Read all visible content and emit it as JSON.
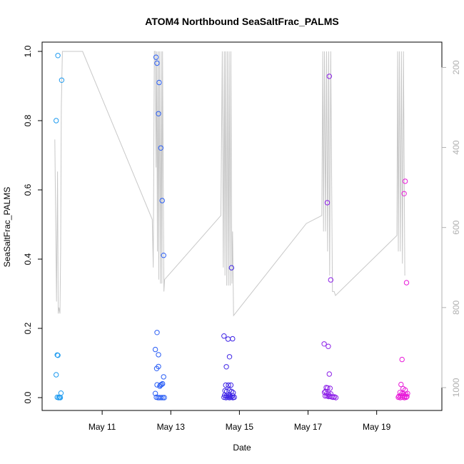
{
  "chart_data": {
    "type": "scatter",
    "title": "ATOM4 Northbound SeaSaltFrac_PALMS",
    "xlabel": "Date",
    "ylabel": "SeaSaltFrac_PALMS",
    "x_unit": "days since May 10 00:00",
    "xlim": [
      9.25,
      20.9
    ],
    "ylim": [
      0,
      1.0
    ],
    "x_ticks": [
      {
        "x": 11,
        "label": "May 11"
      },
      {
        "x": 13,
        "label": "May 13"
      },
      {
        "x": 15,
        "label": "May 15"
      },
      {
        "x": 17,
        "label": "May 17"
      },
      {
        "x": 19,
        "label": "May 19"
      }
    ],
    "y_ticks": [
      {
        "v": 0.0,
        "label": "0.0"
      },
      {
        "v": 0.2,
        "label": "0.2"
      },
      {
        "v": 0.4,
        "label": "0.4"
      },
      {
        "v": 0.6,
        "label": "0.6"
      },
      {
        "v": 0.8,
        "label": "0.8"
      },
      {
        "v": 1.0,
        "label": "1.0"
      }
    ],
    "secondary_axis": {
      "side": "right",
      "reversed": true,
      "ylim": [
        1025,
        160
      ],
      "ticks": [
        {
          "v": 200,
          "label": "200"
        },
        {
          "v": 400,
          "label": "400"
        },
        {
          "v": 600,
          "label": "600"
        },
        {
          "v": 800,
          "label": "800"
        },
        {
          "v": 1000,
          "label": "1000"
        }
      ],
      "color": "#b0b0b0"
    },
    "grid": false,
    "legend": "none",
    "series": [
      {
        "color": "#1e9bf0",
        "points": [
          [
            9.71,
            0.988
          ],
          [
            9.82,
            0.917
          ],
          [
            9.66,
            0.8
          ],
          [
            9.69,
            0.123
          ],
          [
            9.71,
            0.122
          ],
          [
            9.66,
            0.066
          ],
          [
            9.8,
            0.013
          ],
          [
            9.69,
            0.001
          ],
          [
            9.73,
            0.0
          ],
          [
            9.76,
            0.001
          ],
          [
            9.78,
            0.0
          ]
        ]
      },
      {
        "color": "#2a5ef5",
        "points": [
          [
            12.57,
            0.983
          ],
          [
            12.6,
            0.966
          ],
          [
            12.66,
            0.91
          ],
          [
            12.64,
            0.82
          ],
          [
            12.71,
            0.721
          ],
          [
            12.75,
            0.569
          ],
          [
            12.79,
            0.411
          ],
          [
            12.6,
            0.188
          ],
          [
            12.55,
            0.139
          ],
          [
            12.64,
            0.124
          ],
          [
            12.59,
            0.084
          ],
          [
            12.64,
            0.09
          ],
          [
            12.79,
            0.06
          ],
          [
            12.6,
            0.037
          ],
          [
            12.7,
            0.036
          ],
          [
            12.73,
            0.038
          ],
          [
            12.76,
            0.04
          ],
          [
            12.68,
            0.033
          ],
          [
            12.55,
            0.012
          ],
          [
            12.58,
            0.001
          ],
          [
            12.63,
            0.0
          ],
          [
            12.67,
            0.0
          ],
          [
            12.72,
            0.0
          ],
          [
            12.77,
            0.0
          ],
          [
            12.81,
            0.0
          ]
        ]
      },
      {
        "color": "#3f25e6",
        "points": [
          [
            14.77,
            0.375
          ],
          [
            14.55,
            0.178
          ],
          [
            14.67,
            0.169
          ],
          [
            14.8,
            0.17
          ],
          [
            14.71,
            0.118
          ],
          [
            14.62,
            0.089
          ],
          [
            14.6,
            0.036
          ],
          [
            14.68,
            0.036
          ],
          [
            14.75,
            0.036
          ],
          [
            14.58,
            0.02
          ],
          [
            14.63,
            0.018
          ],
          [
            14.7,
            0.021
          ],
          [
            14.77,
            0.018
          ],
          [
            14.82,
            0.014
          ],
          [
            14.57,
            0.007
          ],
          [
            14.62,
            0.005
          ],
          [
            14.67,
            0.006
          ],
          [
            14.72,
            0.004
          ],
          [
            14.8,
            0.006
          ],
          [
            14.55,
            0.001
          ],
          [
            14.61,
            0.0
          ],
          [
            14.66,
            0.001
          ],
          [
            14.71,
            0.0
          ],
          [
            14.76,
            0.001
          ],
          [
            14.81,
            0.0
          ],
          [
            14.85,
            0.001
          ]
        ]
      },
      {
        "color": "#8c1fe8",
        "points": [
          [
            17.62,
            0.928
          ],
          [
            17.56,
            0.563
          ],
          [
            17.66,
            0.34
          ],
          [
            17.47,
            0.155
          ],
          [
            17.59,
            0.148
          ],
          [
            17.62,
            0.068
          ],
          [
            17.53,
            0.029
          ],
          [
            17.57,
            0.028
          ],
          [
            17.64,
            0.027
          ],
          [
            17.48,
            0.015
          ],
          [
            17.51,
            0.018
          ],
          [
            17.55,
            0.012
          ],
          [
            17.6,
            0.01
          ],
          [
            17.66,
            0.011
          ],
          [
            17.5,
            0.005
          ],
          [
            17.55,
            0.005
          ],
          [
            17.6,
            0.003
          ],
          [
            17.64,
            0.004
          ],
          [
            17.69,
            0.002
          ],
          [
            17.73,
            0.001
          ],
          [
            17.77,
            0.002
          ],
          [
            17.81,
            0.0
          ]
        ]
      },
      {
        "color": "#e81ad9",
        "points": [
          [
            19.83,
            0.625
          ],
          [
            19.8,
            0.589
          ],
          [
            19.87,
            0.332
          ],
          [
            19.74,
            0.11
          ],
          [
            19.71,
            0.038
          ],
          [
            19.77,
            0.026
          ],
          [
            19.83,
            0.022
          ],
          [
            19.68,
            0.015
          ],
          [
            19.74,
            0.012
          ],
          [
            19.79,
            0.011
          ],
          [
            19.85,
            0.01
          ],
          [
            19.9,
            0.012
          ],
          [
            19.65,
            0.004
          ],
          [
            19.7,
            0.006
          ],
          [
            19.76,
            0.005
          ],
          [
            19.82,
            0.004
          ],
          [
            19.88,
            0.003
          ],
          [
            19.63,
            0.001
          ],
          [
            19.69,
            0.0
          ],
          [
            19.75,
            0.001
          ],
          [
            19.81,
            0.0
          ],
          [
            19.86,
            0.001
          ]
        ]
      }
    ],
    "altitude_trace": {
      "color": "#c8c8c8",
      "points": [
        [
          9.62,
          380
        ],
        [
          9.67,
          785
        ],
        [
          9.7,
          460
        ],
        [
          9.72,
          815
        ],
        [
          9.74,
          800
        ],
        [
          9.77,
          815
        ],
        [
          9.79,
          650
        ],
        [
          9.81,
          300
        ],
        [
          9.84,
          160
        ],
        [
          9.87,
          160
        ],
        [
          9.9,
          160
        ],
        [
          10.43,
          160
        ],
        [
          12.46,
          580
        ],
        [
          12.49,
          700
        ],
        [
          12.52,
          160
        ],
        [
          12.55,
          160
        ],
        [
          12.57,
          450
        ],
        [
          12.59,
          160
        ],
        [
          12.61,
          660
        ],
        [
          12.63,
          160
        ],
        [
          12.65,
          730
        ],
        [
          12.67,
          160
        ],
        [
          12.7,
          740
        ],
        [
          12.72,
          160
        ],
        [
          12.74,
          740
        ],
        [
          12.76,
          160
        ],
        [
          12.8,
          760
        ],
        [
          12.82,
          730
        ],
        [
          14.46,
          570
        ],
        [
          14.5,
          160
        ],
        [
          14.53,
          700
        ],
        [
          14.56,
          160
        ],
        [
          14.58,
          720
        ],
        [
          14.6,
          160
        ],
        [
          14.63,
          745
        ],
        [
          14.65,
          160
        ],
        [
          14.68,
          745
        ],
        [
          14.7,
          160
        ],
        [
          14.73,
          745
        ],
        [
          14.75,
          160
        ],
        [
          14.78,
          740
        ],
        [
          14.8,
          610
        ],
        [
          14.83,
          820
        ],
        [
          16.95,
          590
        ],
        [
          17.4,
          570
        ],
        [
          17.43,
          160
        ],
        [
          17.45,
          610
        ],
        [
          17.48,
          160
        ],
        [
          17.51,
          610
        ],
        [
          17.54,
          160
        ],
        [
          17.57,
          660
        ],
        [
          17.6,
          160
        ],
        [
          17.63,
          720
        ],
        [
          17.66,
          160
        ],
        [
          17.71,
          760
        ],
        [
          17.76,
          760
        ],
        [
          17.8,
          770
        ],
        [
          19.59,
          620
        ],
        [
          19.61,
          160
        ],
        [
          19.63,
          660
        ],
        [
          19.66,
          160
        ],
        [
          19.69,
          660
        ],
        [
          19.72,
          160
        ],
        [
          19.75,
          690
        ],
        [
          19.78,
          160
        ],
        [
          19.82,
          720
        ]
      ]
    }
  }
}
